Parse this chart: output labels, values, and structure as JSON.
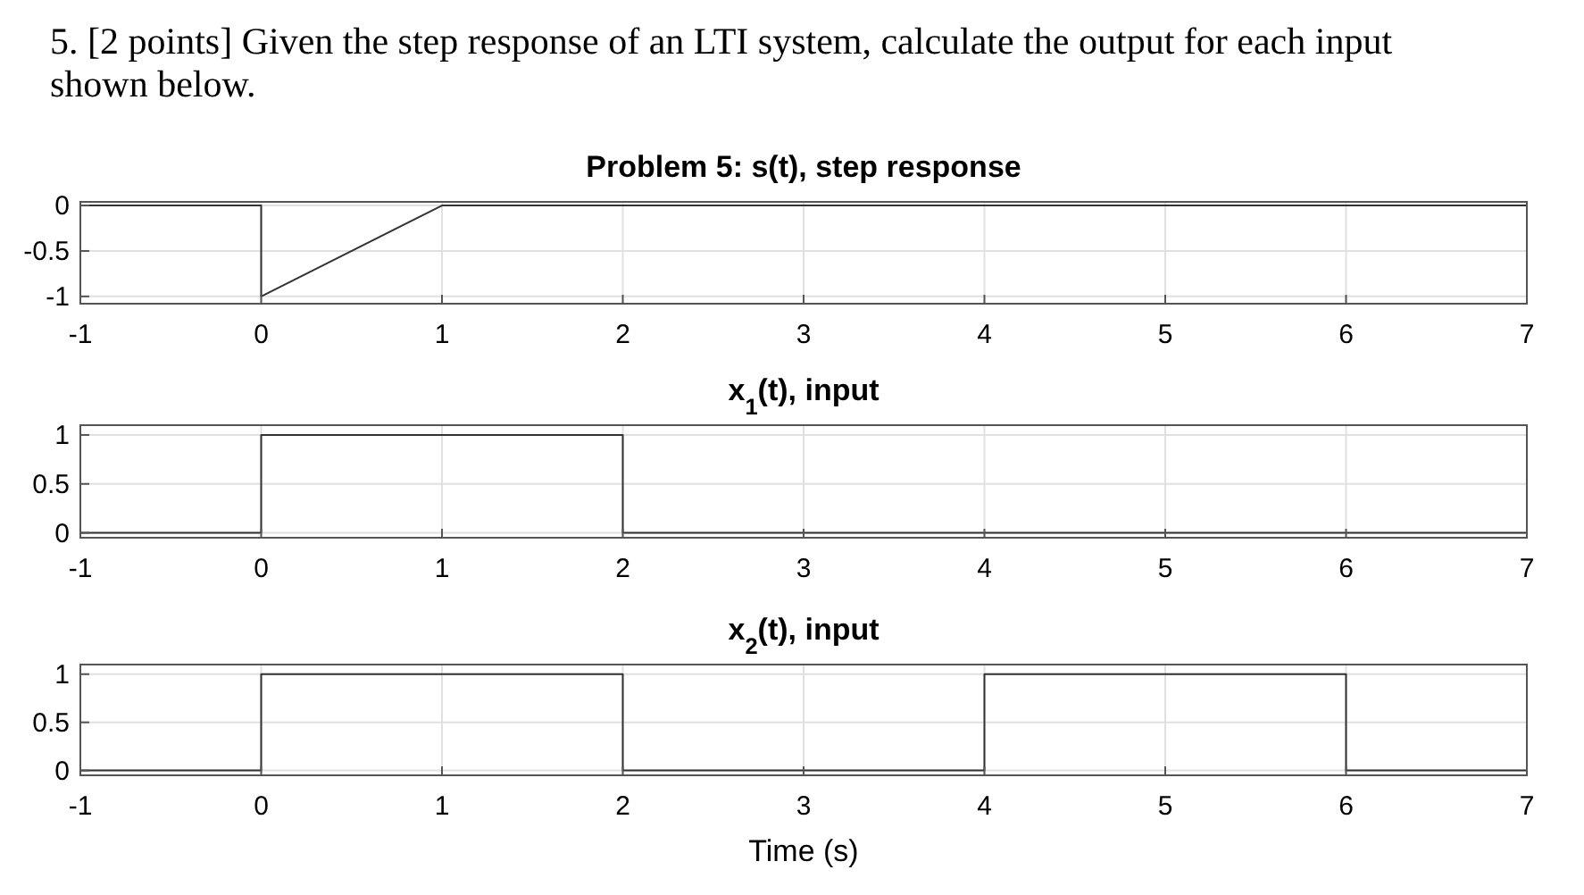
{
  "chart_data": [
    {
      "type": "line",
      "title": "Problem 5: s(t), step response",
      "annotations": [
        "5. [2 points] Given the step response of an LTI system, calculate the output for each input",
        "shown below."
      ],
      "x": [
        -1,
        0,
        0,
        1,
        7
      ],
      "series": [
        {
          "color": "#333333",
          "values": [
            0,
            0,
            -1,
            0,
            0
          ]
        }
      ],
      "xlim": [
        -1,
        7
      ],
      "xticks": [
        -1,
        0,
        1,
        2,
        3,
        4,
        5,
        6,
        7
      ],
      "ylim": [
        -1.08,
        0.04
      ],
      "yticks": [
        -1,
        -0.5,
        0
      ],
      "grid": true,
      "line_style": "solid"
    },
    {
      "type": "line",
      "title": "x$_{1}$(t), input",
      "x": [
        -1,
        0,
        0,
        2,
        2,
        7
      ],
      "series": [
        {
          "color": "#333333",
          "values": [
            0,
            0,
            1,
            1,
            0,
            0
          ]
        }
      ],
      "xlim": [
        -1,
        7
      ],
      "xticks": [
        -1,
        0,
        1,
        2,
        3,
        4,
        5,
        6,
        7
      ],
      "ylim": [
        -0.05,
        1.1
      ],
      "yticks": [
        0,
        0.5,
        1
      ],
      "grid": true,
      "line_style": "solid"
    },
    {
      "type": "line",
      "title": "x$_{2}$(t), input",
      "xlabel": "Time (s)",
      "x": [
        -1,
        0,
        0,
        2,
        2,
        4,
        4,
        6,
        6,
        7
      ],
      "series": [
        {
          "color": "#333333",
          "values": [
            0,
            0,
            1,
            1,
            0,
            0,
            1,
            1,
            0,
            0
          ]
        }
      ],
      "xlim": [
        -1,
        7
      ],
      "xticks": [
        -1,
        0,
        1,
        2,
        3,
        4,
        5,
        6,
        7
      ],
      "ylim": [
        -0.05,
        1.1
      ],
      "yticks": [
        0,
        0.5,
        1
      ],
      "grid": true,
      "line_style": "solid"
    }
  ]
}
